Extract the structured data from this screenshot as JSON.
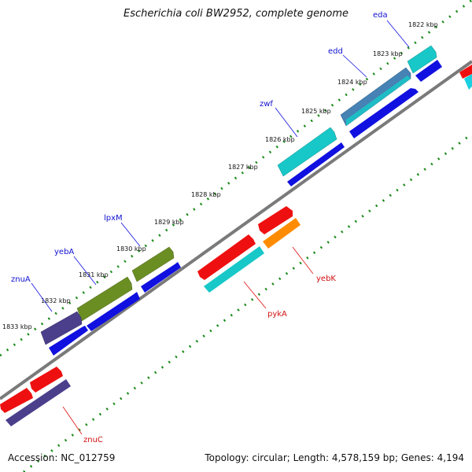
{
  "header": {
    "title": "Escherichia coli BW2952, complete genome"
  },
  "footer": {
    "accession": "Accession: NC_012759",
    "topology": "Topology: circular; Length: 4,578,159 bp; Genes: 4,194"
  },
  "ticks": [
    "1822 kbp",
    "1823 kbp",
    "1824 kbp",
    "1825 kbp",
    "1826 kbp",
    "1827 kbp",
    "1828 kbp",
    "1829 kbp",
    "1830 kbp",
    "1831 kbp",
    "1832 kbp",
    "1833 kbp"
  ],
  "genes": [
    {
      "name": "eda",
      "strand": "forward",
      "color": "#1010d0"
    },
    {
      "name": "edd",
      "strand": "forward",
      "color": "#1010d0"
    },
    {
      "name": "zwf",
      "strand": "forward",
      "color": "#1010d0"
    },
    {
      "name": "lpxM",
      "strand": "forward",
      "color": "#1010d0"
    },
    {
      "name": "yebA",
      "strand": "forward",
      "color": "#1010d0"
    },
    {
      "name": "znuA",
      "strand": "forward",
      "color": "#1010d0"
    },
    {
      "name": "yebK",
      "strand": "reverse",
      "color": "#d01010"
    },
    {
      "name": "pykA",
      "strand": "reverse",
      "color": "#d01010"
    },
    {
      "name": "znuC",
      "strand": "reverse",
      "color": "#d01010"
    }
  ],
  "colors": {
    "backbone": "#7a7a7a",
    "tick_dots": "#1a8a1a",
    "cyan": "#18c8c8",
    "blue": "#1010e0",
    "olive": "#6b8e23",
    "purple": "#4b3f8c",
    "red": "#ee1010",
    "orange": "#ff8c00",
    "steelblue": "#4682b4"
  }
}
